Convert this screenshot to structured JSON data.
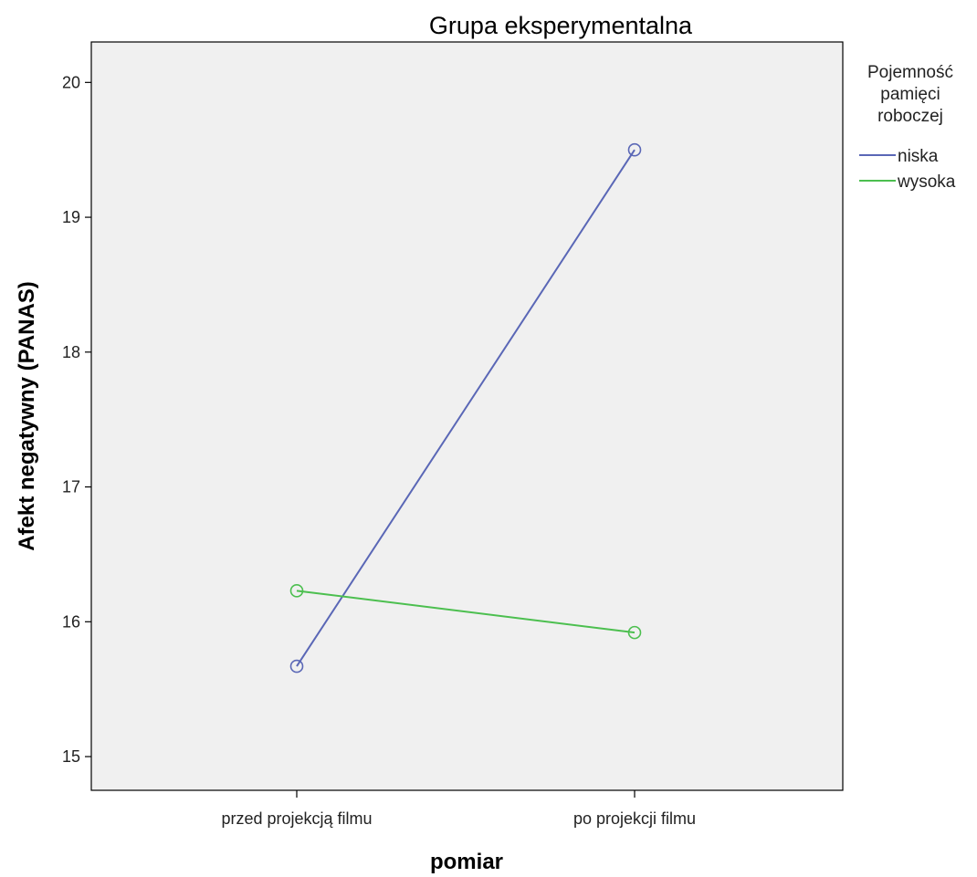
{
  "chart_data": {
    "type": "line",
    "title": "Grupa eksperymentalna",
    "xlabel": "pomiar",
    "ylabel": "Afekt negatywny (PANAS)",
    "categories": [
      "przed projekcją filmu",
      "po projekcji filmu"
    ],
    "ylim": [
      14.75,
      20.3
    ],
    "yticks": [
      15,
      16,
      17,
      18,
      19,
      20
    ],
    "grid": false,
    "legend": {
      "title_lines": [
        "Pojemność",
        "pamięci",
        "roboczej"
      ],
      "placement": "right"
    },
    "series": [
      {
        "name": "niska",
        "values": [
          15.67,
          19.5
        ],
        "color": "#5a67b6"
      },
      {
        "name": "wysoka",
        "values": [
          16.23,
          15.92
        ],
        "color": "#4cbf4f"
      }
    ],
    "plot_background": "#f0f0f0"
  }
}
